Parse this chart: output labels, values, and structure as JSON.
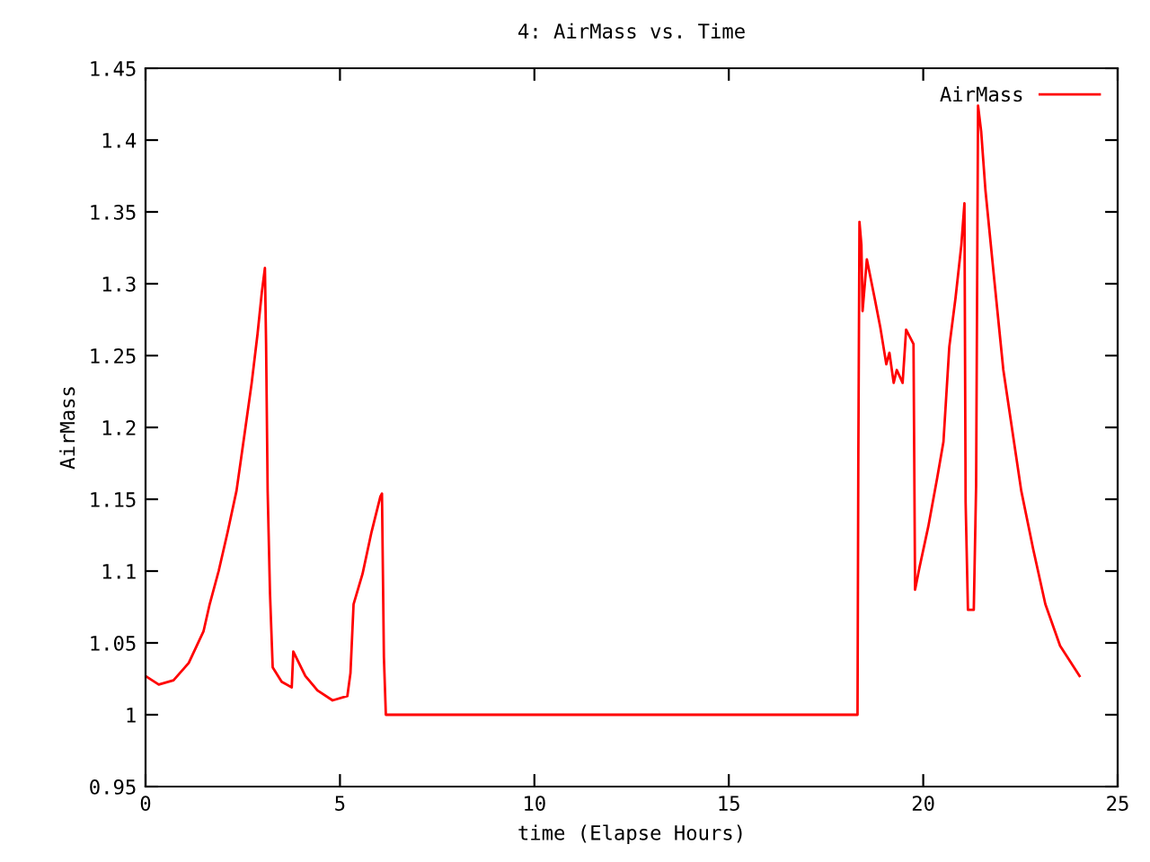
{
  "chart_data": {
    "type": "line",
    "title": "4: AirMass vs. Time",
    "xlabel": "time (Elapse Hours)",
    "ylabel": "AirMass",
    "x": [
      0,
      0.34,
      0.72,
      1.11,
      1.49,
      1.65,
      1.88,
      2.11,
      2.34,
      2.57,
      2.73,
      2.88,
      2.99,
      3.07,
      3.1,
      3.14,
      3.2,
      3.27,
      3.5,
      3.76,
      3.8,
      4.11,
      4.42,
      4.81,
      5.19,
      5.27,
      5.35,
      5.58,
      5.81,
      6.04,
      6.08,
      6.13,
      6.18,
      18.31,
      18.33,
      18.36,
      18.41,
      18.44,
      18.55,
      18.75,
      18.9,
      19.05,
      19.13,
      19.24,
      19.32,
      19.47,
      19.56,
      19.75,
      19.79,
      19.9,
      20.13,
      20.36,
      20.52,
      20.67,
      20.83,
      20.98,
      21.06,
      21.09,
      21.15,
      21.3,
      21.36,
      21.41,
      21.49,
      21.6,
      21.83,
      22.06,
      22.29,
      22.52,
      22.83,
      23.14,
      23.52,
      24.02
    ],
    "series": [
      {
        "name": "AirMass",
        "color": "#ff0000",
        "values": [
          1.027,
          1.021,
          1.024,
          1.036,
          1.058,
          1.077,
          1.1,
          1.127,
          1.156,
          1.2,
          1.231,
          1.265,
          1.294,
          1.311,
          1.258,
          1.156,
          1.085,
          1.033,
          1.023,
          1.019,
          1.044,
          1.027,
          1.017,
          1.01,
          1.013,
          1.029,
          1.077,
          1.098,
          1.127,
          1.152,
          1.154,
          1.04,
          1.0,
          1.0,
          1.173,
          1.343,
          1.327,
          1.281,
          1.317,
          1.29,
          1.269,
          1.244,
          1.252,
          1.231,
          1.24,
          1.231,
          1.268,
          1.258,
          1.087,
          1.102,
          1.131,
          1.165,
          1.19,
          1.256,
          1.29,
          1.327,
          1.356,
          1.148,
          1.073,
          1.073,
          1.16,
          1.424,
          1.406,
          1.365,
          1.302,
          1.24,
          1.198,
          1.156,
          1.115,
          1.077,
          1.048,
          1.027
        ]
      }
    ],
    "xlim": [
      0,
      25
    ],
    "xticks": [
      0,
      5,
      10,
      15,
      20,
      25
    ],
    "ylim": [
      0.95,
      1.45
    ],
    "yticks": [
      0.95,
      1,
      1.05,
      1.1,
      1.15,
      1.2,
      1.25,
      1.3,
      1.35,
      1.4,
      1.45
    ],
    "grid": false,
    "legend": "top right",
    "marker": "none",
    "line_style": "solid"
  }
}
